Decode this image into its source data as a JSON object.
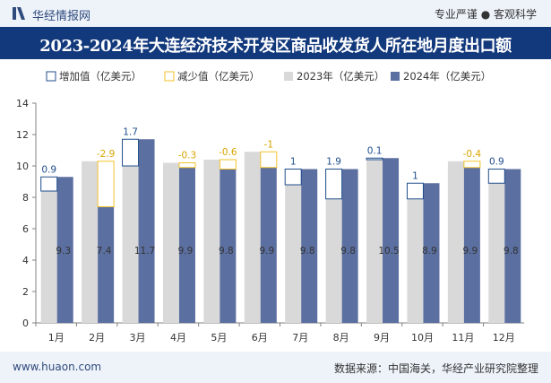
{
  "header": {
    "brand": "华经情报网",
    "tagline": "专业严谨 ● 客观科学",
    "title": "2023-2024年大连经济技术开发区商品收发货人所在地月度出口额"
  },
  "footer": {
    "website": "www.huaon.com",
    "source": "数据来源：中国海关，华经产业研究院整理"
  },
  "colors": {
    "increase_outline": "#1f4e8c",
    "decrease_outline": "#f2c22a",
    "series_2023": "#d9d9d9",
    "series_2024": "#5b6fa0",
    "increase_label": "#1f4e8c",
    "decrease_label": "#d9a400"
  },
  "chart_data": {
    "type": "bar",
    "categories": [
      "1月",
      "2月",
      "3月",
      "4月",
      "5月",
      "6月",
      "7月",
      "8月",
      "9月",
      "10月",
      "11月",
      "12月"
    ],
    "series": [
      {
        "name": "2023年（亿美元）",
        "values": [
          8.4,
          10.3,
          10.0,
          10.2,
          10.4,
          10.9,
          8.8,
          7.9,
          10.4,
          7.9,
          10.3,
          8.9
        ]
      },
      {
        "name": "2024年（亿美元）",
        "values": [
          9.3,
          7.4,
          11.7,
          9.9,
          9.8,
          9.9,
          9.8,
          9.8,
          10.5,
          8.9,
          9.9,
          9.8
        ]
      }
    ],
    "change_series": [
      {
        "name": "增加值（亿美元）",
        "kind": "increase"
      },
      {
        "name": "减少值（亿美元）",
        "kind": "decrease"
      }
    ],
    "change_labels": [
      "0.9",
      "-2.9",
      "1.7",
      "-0.3",
      "-0.6",
      "-1",
      "1",
      "1.9",
      "0.1",
      "1",
      "-0.4",
      "0.9"
    ],
    "ylim": [
      0,
      14
    ],
    "yticks": [
      0,
      2,
      4,
      6,
      8,
      10,
      12,
      14
    ],
    "grid": false,
    "legend_position": "top"
  }
}
